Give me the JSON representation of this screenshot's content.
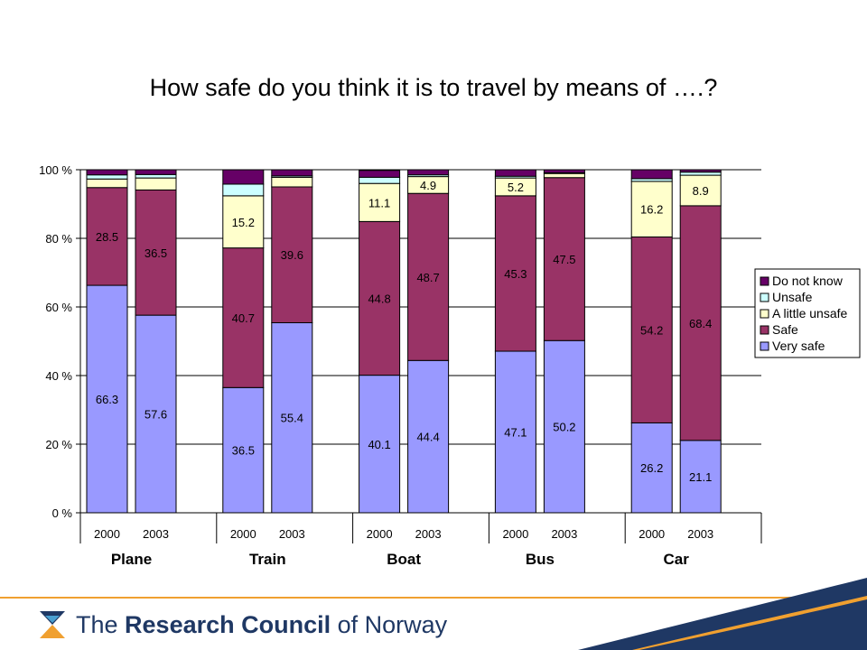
{
  "title": "How safe do you think it is to travel by means of ….?",
  "footer": {
    "org_the": "The",
    "org_bold": "Research Council",
    "org_rest": "of Norway"
  },
  "colors": {
    "very_safe": "#9999ff",
    "safe": "#993366",
    "a_little_unsafe": "#ffffcc",
    "unsafe": "#ccffff",
    "do_not_know": "#660066",
    "footer_blue": "#1f3864",
    "footer_orange": "#f0a030"
  },
  "chart_data": {
    "type": "bar",
    "stacked": true,
    "title": "How safe do you think it is to travel by means of ….?",
    "ylim": [
      0,
      100
    ],
    "yticks": [
      "0 %",
      "20 %",
      "40 %",
      "60 %",
      "80 %",
      "100 %"
    ],
    "grid": true,
    "legend_position": "right",
    "groups": [
      {
        "name": "Plane",
        "bars": [
          "2000",
          "2003"
        ]
      },
      {
        "name": "Train",
        "bars": [
          "2000",
          "2003"
        ]
      },
      {
        "name": "Boat",
        "bars": [
          "2000",
          "2003"
        ]
      },
      {
        "name": "Bus",
        "bars": [
          "2000",
          "2003"
        ]
      },
      {
        "name": "Car",
        "bars": [
          "2000",
          "2003"
        ]
      }
    ],
    "series": [
      {
        "name": "Very safe",
        "color": "#9999ff",
        "values": [
          66.3,
          57.6,
          36.5,
          55.4,
          40.1,
          44.4,
          47.1,
          50.2,
          26.2,
          21.1
        ],
        "labels": [
          "66.3",
          "57.6",
          "36.5",
          "55.4",
          "40.1",
          "44.4",
          "47.1",
          "50.2",
          "26.2",
          "21.1"
        ]
      },
      {
        "name": "Safe",
        "color": "#993366",
        "values": [
          28.5,
          36.5,
          40.7,
          39.6,
          44.8,
          48.7,
          45.3,
          47.5,
          54.2,
          68.4
        ],
        "labels": [
          "28.5",
          "36.5",
          "40.7",
          "39.6",
          "44.8",
          "48.7",
          "45.3",
          "47.5",
          "54.2",
          "68.4"
        ]
      },
      {
        "name": "A little unsafe",
        "color": "#ffffcc",
        "values": [
          2.5,
          3.5,
          15.2,
          2.8,
          11.1,
          4.9,
          5.2,
          1.2,
          16.2,
          8.9
        ],
        "labels": [
          "",
          "",
          "15.2",
          "",
          "11.1",
          "4.9",
          "5.2",
          "",
          "16.2",
          "8.9"
        ]
      },
      {
        "name": "Unsafe",
        "color": "#ccffff",
        "values": [
          1.2,
          1.0,
          3.4,
          0.4,
          1.8,
          0.5,
          0.5,
          0.2,
          0.8,
          0.9
        ],
        "labels": [
          "",
          "",
          "",
          "",
          "",
          "",
          "",
          "",
          "",
          ""
        ]
      },
      {
        "name": "Do not know",
        "color": "#660066",
        "values": [
          1.5,
          1.4,
          4.2,
          1.8,
          2.0,
          1.5,
          1.9,
          0.9,
          2.6,
          0.7
        ],
        "labels": [
          "",
          "",
          "",
          "",
          "",
          "",
          "",
          "",
          "",
          ""
        ]
      }
    ]
  }
}
